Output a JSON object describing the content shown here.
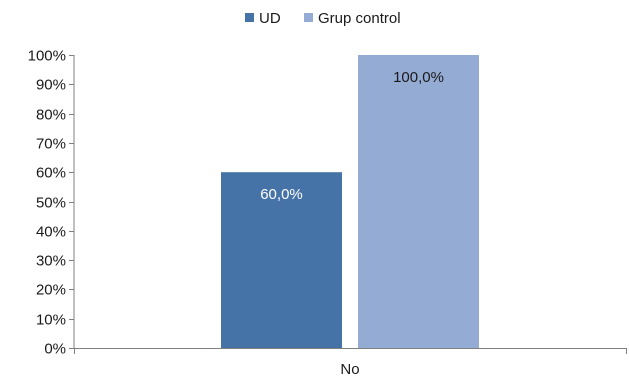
{
  "chart_data": {
    "type": "bar",
    "categories": [
      "No"
    ],
    "series": [
      {
        "name": "UD",
        "values": [
          60.0
        ],
        "color": "#4572A7",
        "label_color": "#ffffff"
      },
      {
        "name": "Grup control",
        "values": [
          100.0
        ],
        "color": "#94ABD4",
        "label_color": "#1a1a1a"
      }
    ],
    "data_labels": [
      [
        "60,0%"
      ],
      [
        "100,0%"
      ]
    ],
    "ylim": [
      0,
      100
    ],
    "yticks": [
      0,
      10,
      20,
      30,
      40,
      50,
      60,
      70,
      80,
      90,
      100
    ],
    "ytick_labels": [
      "0%",
      "10%",
      "20%",
      "30%",
      "40%",
      "50%",
      "60%",
      "70%",
      "80%",
      "90%",
      "100%"
    ],
    "legend_position": "top",
    "grid": false,
    "axis_color": "#808080"
  }
}
